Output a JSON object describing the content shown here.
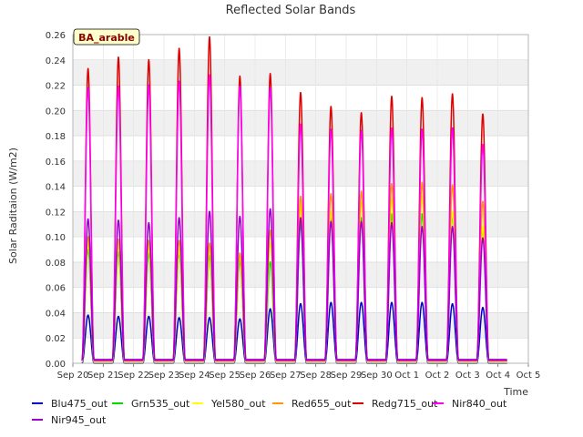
{
  "chart_data": {
    "type": "line",
    "title": "Reflected Solar Bands",
    "xlabel": "Time",
    "ylabel": "Solar Raditaion (W/m2)",
    "badge": "BA_arable",
    "ylim": [
      0.0,
      0.26
    ],
    "yticks": [
      "0.00",
      "0.02",
      "0.04",
      "0.06",
      "0.08",
      "0.10",
      "0.12",
      "0.14",
      "0.16",
      "0.18",
      "0.20",
      "0.22",
      "0.24",
      "0.26"
    ],
    "xlim_days": [
      0,
      15
    ],
    "xticks": [
      "Sep 20",
      "Sep 21",
      "Sep 22",
      "Sep 23",
      "Sep 24",
      "Sep 25",
      "Sep 26",
      "Sep 27",
      "Sep 28",
      "Sep 29",
      "Sep 30",
      "Oct 1",
      "Oct 2",
      "Oct 3",
      "Oct 4",
      "Oct 5"
    ],
    "peak_day_offsets": [
      0.5,
      1.5,
      2.5,
      3.5,
      4.5,
      5.5,
      6.5,
      7.5,
      8.5,
      9.5,
      10.5,
      11.5,
      12.5,
      13.5
    ],
    "series": [
      {
        "name": "Blu475_out",
        "color": "#0000cc",
        "baseline": 0.0,
        "daily_peaks": [
          0.038,
          0.037,
          0.037,
          0.036,
          0.036,
          0.035,
          0.043,
          0.047,
          0.048,
          0.048,
          0.048,
          0.048,
          0.047,
          0.044
        ]
      },
      {
        "name": "Grn535_out",
        "color": "#00dd00",
        "baseline": 0.001,
        "daily_peaks": [
          0.09,
          0.088,
          0.087,
          0.087,
          0.085,
          0.081,
          0.08,
          0.11,
          0.115,
          0.115,
          0.118,
          0.118,
          0.117,
          0.106
        ]
      },
      {
        "name": "Yel580_out",
        "color": "#ffff00",
        "baseline": 0.001,
        "daily_peaks": [
          0.095,
          0.093,
          0.092,
          0.09,
          0.09,
          0.085,
          0.095,
          0.125,
          0.12,
          0.127,
          0.13,
          0.132,
          0.12,
          0.108
        ]
      },
      {
        "name": "Red655_out",
        "color": "#ff9900",
        "baseline": 0.002,
        "daily_peaks": [
          0.1,
          0.098,
          0.097,
          0.097,
          0.095,
          0.087,
          0.105,
          0.132,
          0.134,
          0.136,
          0.142,
          0.143,
          0.141,
          0.128
        ]
      },
      {
        "name": "Redg715_out",
        "color": "#dd0000",
        "baseline": 0.002,
        "daily_peaks": [
          0.233,
          0.242,
          0.24,
          0.249,
          0.258,
          0.227,
          0.229,
          0.214,
          0.203,
          0.198,
          0.211,
          0.21,
          0.213,
          0.197
        ]
      },
      {
        "name": "Nir840_out",
        "color": "#ff00ff",
        "baseline": 0.002,
        "daily_peaks": [
          0.218,
          0.219,
          0.22,
          0.223,
          0.228,
          0.219,
          0.218,
          0.189,
          0.185,
          0.184,
          0.186,
          0.185,
          0.186,
          0.173
        ]
      },
      {
        "name": "Nir945_out",
        "color": "#9900cc",
        "baseline": 0.003,
        "daily_peaks": [
          0.114,
          0.113,
          0.111,
          0.115,
          0.12,
          0.116,
          0.122,
          0.115,
          0.112,
          0.112,
          0.111,
          0.108,
          0.108,
          0.099
        ]
      }
    ]
  }
}
